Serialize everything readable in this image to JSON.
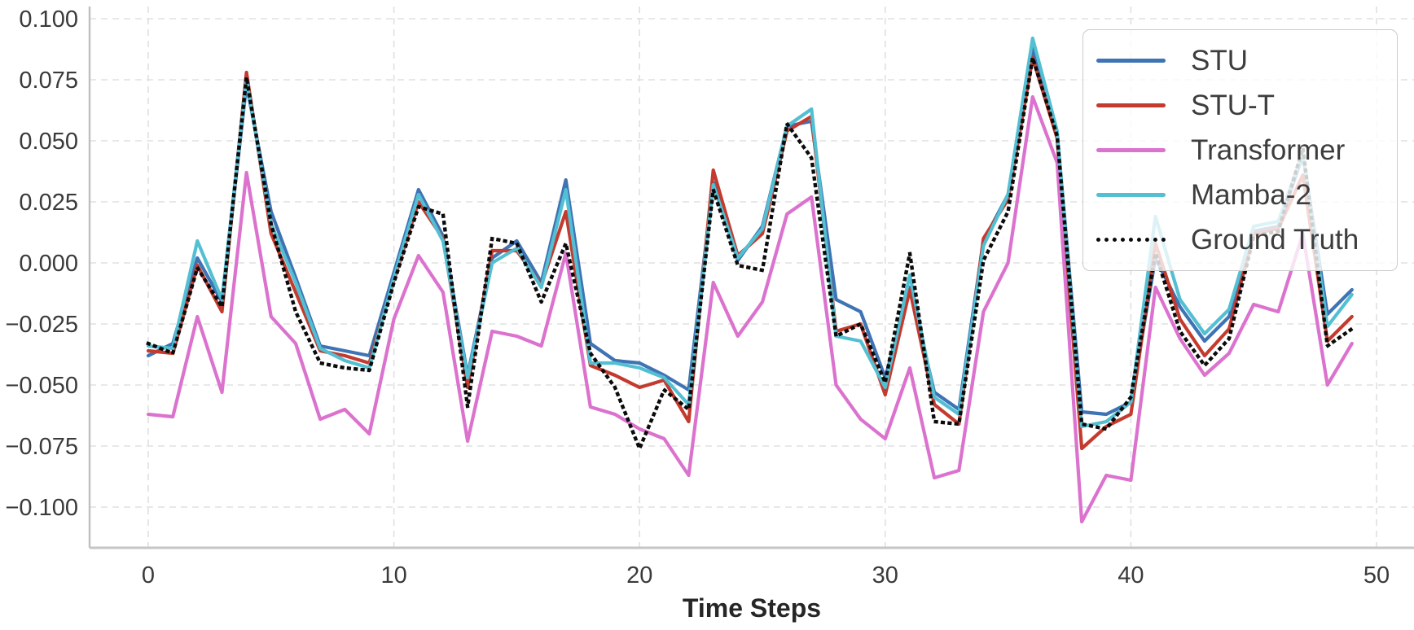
{
  "chart_data": {
    "type": "line",
    "title": "",
    "xlabel": "Time Steps",
    "ylabel": "",
    "x": [
      0,
      1,
      2,
      3,
      4,
      5,
      6,
      7,
      8,
      9,
      10,
      11,
      12,
      13,
      14,
      15,
      16,
      17,
      18,
      19,
      20,
      21,
      22,
      23,
      24,
      25,
      26,
      27,
      28,
      29,
      30,
      31,
      32,
      33,
      34,
      35,
      36,
      37,
      38,
      39,
      40,
      41,
      42,
      43,
      44,
      45,
      46,
      47,
      48,
      49
    ],
    "xlim": [
      -2.4,
      51.5
    ],
    "ylim": [
      -0.1165,
      0.1075
    ],
    "x_ticks": {
      "values": [
        0,
        10,
        20,
        30,
        40,
        50
      ],
      "labels": [
        "0",
        "10",
        "20",
        "30",
        "40",
        "50"
      ]
    },
    "y_ticks": {
      "values": [
        0.1,
        0.075,
        0.05,
        0.025,
        0.0,
        -0.025,
        -0.05,
        -0.075,
        -0.1
      ],
      "labels": [
        "0.100",
        "0.075",
        "0.050",
        "0.025",
        "0.000",
        "−0.025",
        "−0.050",
        "−0.075",
        "−0.100"
      ]
    },
    "grid": "both-dashed",
    "legend_position": "upper right",
    "series": [
      {
        "name": "STU",
        "color": "#3E73B4",
        "style": "solid",
        "values": [
          -0.038,
          -0.033,
          0.002,
          -0.016,
          0.073,
          0.021,
          -0.006,
          -0.034,
          -0.036,
          -0.038,
          -0.004,
          0.03,
          0.011,
          -0.046,
          0.002,
          0.009,
          -0.008,
          0.034,
          -0.033,
          -0.04,
          -0.041,
          -0.046,
          -0.052,
          0.033,
          0.001,
          0.015,
          0.056,
          0.058,
          -0.015,
          -0.02,
          -0.047,
          -0.01,
          -0.053,
          -0.06,
          0.009,
          0.028,
          0.088,
          0.053,
          -0.061,
          -0.062,
          -0.057,
          0.002,
          -0.018,
          -0.032,
          -0.022,
          0.013,
          0.015,
          0.044,
          -0.021,
          -0.011
        ]
      },
      {
        "name": "STU-T",
        "color": "#C33B2F",
        "style": "solid",
        "values": [
          -0.036,
          -0.037,
          -0.001,
          -0.02,
          0.078,
          0.012,
          -0.012,
          -0.036,
          -0.038,
          -0.041,
          -0.007,
          0.025,
          0.01,
          -0.051,
          0.005,
          0.005,
          -0.009,
          0.021,
          -0.042,
          -0.046,
          -0.051,
          -0.048,
          -0.065,
          0.038,
          0.003,
          0.012,
          0.054,
          0.06,
          -0.028,
          -0.025,
          -0.054,
          -0.011,
          -0.058,
          -0.066,
          0.01,
          0.026,
          0.084,
          0.051,
          -0.076,
          -0.067,
          -0.062,
          0.008,
          -0.023,
          -0.038,
          -0.027,
          0.012,
          0.014,
          0.036,
          -0.032,
          -0.022
        ]
      },
      {
        "name": "Transformer",
        "color": "#DB72CE",
        "style": "solid",
        "values": [
          -0.062,
          -0.063,
          -0.022,
          -0.053,
          0.037,
          -0.022,
          -0.033,
          -0.064,
          -0.06,
          -0.07,
          -0.023,
          0.003,
          -0.012,
          -0.073,
          -0.028,
          -0.03,
          -0.034,
          0.004,
          -0.059,
          -0.062,
          -0.068,
          -0.072,
          -0.087,
          -0.008,
          -0.03,
          -0.016,
          0.02,
          0.027,
          -0.05,
          -0.064,
          -0.072,
          -0.043,
          -0.088,
          -0.085,
          -0.02,
          0.0,
          0.068,
          0.041,
          -0.106,
          -0.087,
          -0.089,
          -0.01,
          -0.031,
          -0.046,
          -0.037,
          -0.017,
          -0.02,
          0.012,
          -0.05,
          -0.033
        ]
      },
      {
        "name": "Mamba-2",
        "color": "#53BFD3",
        "style": "solid",
        "values": [
          -0.034,
          -0.035,
          0.009,
          -0.015,
          0.075,
          0.016,
          -0.008,
          -0.035,
          -0.04,
          -0.043,
          -0.006,
          0.028,
          0.009,
          -0.047,
          0.0,
          0.006,
          -0.01,
          0.03,
          -0.041,
          -0.041,
          -0.043,
          -0.047,
          -0.058,
          0.032,
          0.002,
          0.014,
          0.056,
          0.063,
          -0.03,
          -0.032,
          -0.051,
          -0.005,
          -0.055,
          -0.062,
          0.007,
          0.028,
          0.092,
          0.054,
          -0.067,
          -0.065,
          -0.057,
          0.019,
          -0.015,
          -0.029,
          -0.019,
          0.015,
          0.017,
          0.045,
          -0.026,
          -0.013
        ]
      },
      {
        "name": "Ground Truth",
        "color": "#0B0B0B",
        "style": "dotted",
        "values": [
          -0.033,
          -0.037,
          -0.002,
          -0.018,
          0.076,
          0.016,
          -0.02,
          -0.041,
          -0.043,
          -0.044,
          -0.008,
          0.023,
          0.02,
          -0.059,
          0.01,
          0.008,
          -0.016,
          0.008,
          -0.037,
          -0.051,
          -0.076,
          -0.052,
          -0.06,
          0.03,
          -0.001,
          -0.003,
          0.057,
          0.043,
          -0.03,
          -0.025,
          -0.049,
          0.004,
          -0.065,
          -0.066,
          0.001,
          0.021,
          0.084,
          0.052,
          -0.066,
          -0.068,
          -0.055,
          0.004,
          -0.028,
          -0.042,
          -0.031,
          0.011,
          0.013,
          0.047,
          -0.034,
          -0.027
        ]
      }
    ]
  },
  "legend": {
    "items": [
      {
        "label": "STU",
        "color": "#3E73B4",
        "style": "solid"
      },
      {
        "label": "STU-T",
        "color": "#C33B2F",
        "style": "solid"
      },
      {
        "label": "Transformer",
        "color": "#DB72CE",
        "style": "solid"
      },
      {
        "label": "Mamba-2",
        "color": "#53BFD3",
        "style": "solid"
      },
      {
        "label": "Ground Truth",
        "color": "#0B0B0B",
        "style": "dotted"
      }
    ]
  },
  "colors": {
    "grid": "#e0e0e0",
    "spine_left": "#bfbfbf",
    "spine_bottom": "#c6c6c6",
    "tick_text": "#3a3a3a",
    "axis_title_text": "#262626"
  }
}
